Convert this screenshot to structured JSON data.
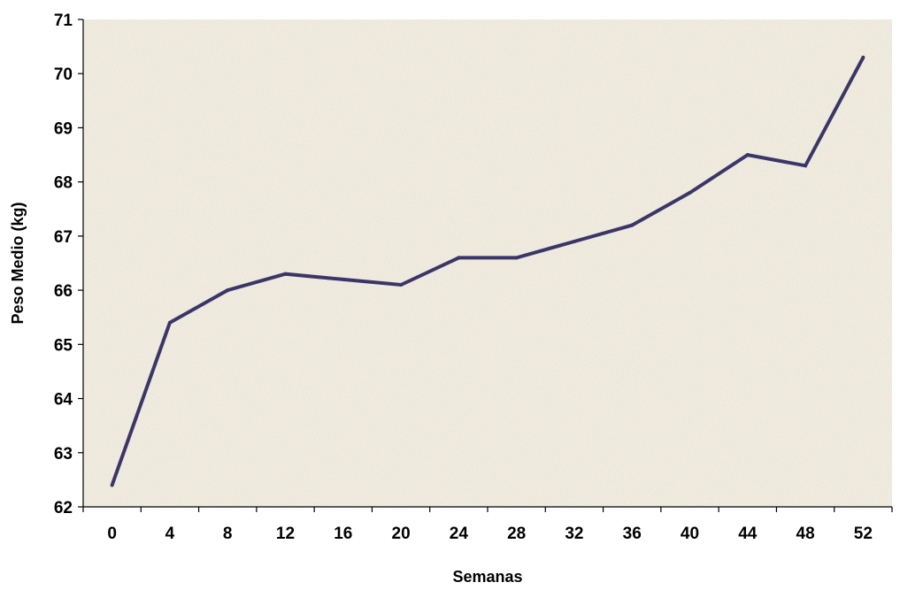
{
  "chart_data": {
    "type": "line",
    "title": "",
    "xlabel": "Semanas",
    "ylabel": "Peso Medio (kg)",
    "ylim": [
      62,
      71
    ],
    "x": [
      0,
      4,
      8,
      12,
      16,
      20,
      24,
      28,
      32,
      36,
      40,
      44,
      48,
      52
    ],
    "x_tick_labels": [
      "0",
      "4",
      "8",
      "12",
      "16",
      "20",
      "24",
      "28",
      "32",
      "36",
      "40",
      "44",
      "48",
      "52"
    ],
    "y_ticks": [
      62,
      63,
      64,
      65,
      66,
      67,
      68,
      69,
      70,
      71
    ],
    "series": [
      {
        "values": [
          62.4,
          65.4,
          66.0,
          66.3,
          66.2,
          66.1,
          66.6,
          66.6,
          66.9,
          67.2,
          67.8,
          68.5,
          68.3,
          70.3
        ]
      }
    ],
    "line_color": "#3b3668",
    "plot_background": "#f2ede1",
    "grid": false,
    "legend": "none"
  }
}
